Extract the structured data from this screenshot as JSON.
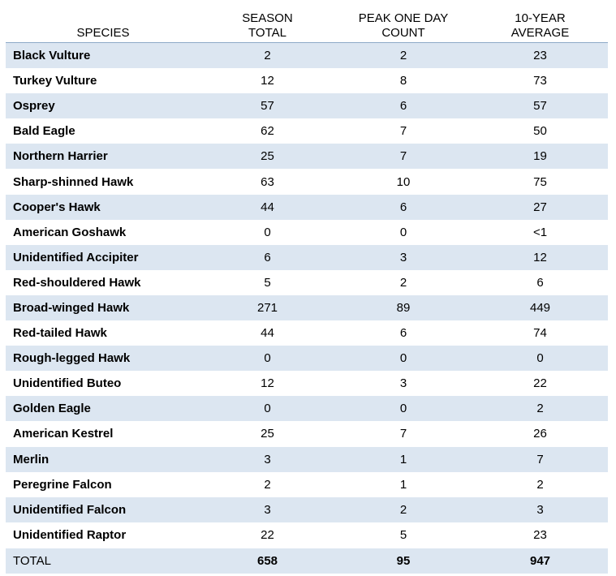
{
  "table": {
    "header": [
      "SPECIES",
      "SEASON TOTAL",
      "PEAK ONE DAY COUNT",
      "10-YEAR AVERAGE"
    ],
    "rows": [
      [
        "Black Vulture",
        2,
        2,
        23
      ],
      [
        "Turkey Vulture",
        12,
        8,
        73
      ],
      [
        "Osprey",
        57,
        6,
        57
      ],
      [
        "Bald Eagle",
        62,
        7,
        50
      ],
      [
        "Northern Harrier",
        25,
        7,
        19
      ],
      [
        "Sharp-shinned Hawk",
        63,
        10,
        75
      ],
      [
        "Cooper's Hawk",
        44,
        6,
        27
      ],
      [
        "American Goshawk",
        0,
        0,
        "<1"
      ],
      [
        "Unidentified Accipiter",
        6,
        3,
        12
      ],
      [
        "Red-shouldered Hawk",
        5,
        2,
        6
      ],
      [
        "Broad-winged Hawk",
        271,
        89,
        449
      ],
      [
        "Red-tailed Hawk",
        44,
        6,
        74
      ],
      [
        "Rough-legged Hawk",
        0,
        0,
        0
      ],
      [
        "Unidentified Buteo",
        12,
        3,
        22
      ],
      [
        "Golden Eagle",
        0,
        0,
        2
      ],
      [
        "American Kestrel",
        25,
        7,
        26
      ],
      [
        "Merlin",
        3,
        1,
        7
      ],
      [
        "Peregrine Falcon",
        2,
        1,
        2
      ],
      [
        "Unidentified Falcon",
        3,
        2,
        3
      ],
      [
        "Unidentified Raptor",
        22,
        5,
        23
      ]
    ],
    "total": [
      "TOTAL",
      658,
      95,
      947
    ]
  }
}
